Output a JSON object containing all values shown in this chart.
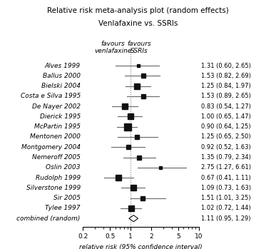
{
  "title_line1": "Relative risk meta-analysis plot (random effects)",
  "title_line2": "Venlafaxine vs. SSRIs",
  "xlabel": "relative risk (95% confidence interval)",
  "studies": [
    {
      "label": "Alves 1999",
      "rr": 1.31,
      "ci_lo": 0.6,
      "ci_hi": 2.65
    },
    {
      "label": "Ballus 2000",
      "rr": 1.53,
      "ci_lo": 0.82,
      "ci_hi": 2.69
    },
    {
      "label": "Bielski 2004",
      "rr": 1.25,
      "ci_lo": 0.84,
      "ci_hi": 1.97
    },
    {
      "label": "Costa e Silva 1995",
      "rr": 1.53,
      "ci_lo": 0.89,
      "ci_hi": 2.65
    },
    {
      "label": "De Nayer 2002",
      "rr": 0.83,
      "ci_lo": 0.54,
      "ci_hi": 1.27
    },
    {
      "label": "Dierick 1995",
      "rr": 1.0,
      "ci_lo": 0.65,
      "ci_hi": 1.47
    },
    {
      "label": "McPartin 1995",
      "rr": 0.9,
      "ci_lo": 0.64,
      "ci_hi": 1.25
    },
    {
      "label": "Mentonen 2000",
      "rr": 1.25,
      "ci_lo": 0.65,
      "ci_hi": 2.5
    },
    {
      "label": "Montgomery 2004",
      "rr": 0.92,
      "ci_lo": 0.52,
      "ci_hi": 1.63
    },
    {
      "label": "Nemeroff 2005",
      "rr": 1.35,
      "ci_lo": 0.79,
      "ci_hi": 2.34
    },
    {
      "label": "Oslin 2003",
      "rr": 2.75,
      "ci_lo": 1.27,
      "ci_hi": 6.61
    },
    {
      "label": "Rudolph 1999",
      "rr": 0.67,
      "ci_lo": 0.41,
      "ci_hi": 1.11
    },
    {
      "label": "Silverstone 1999",
      "rr": 1.09,
      "ci_lo": 0.73,
      "ci_hi": 1.63
    },
    {
      "label": "Sir 2005",
      "rr": 1.51,
      "ci_lo": 1.01,
      "ci_hi": 3.25
    },
    {
      "label": "Tylee 1997",
      "rr": 1.02,
      "ci_lo": 0.72,
      "ci_hi": 1.44
    },
    {
      "label": "combined (random)",
      "rr": 1.11,
      "ci_lo": 0.95,
      "ci_hi": 1.29,
      "is_combined": true
    }
  ],
  "ci_text": [
    "1.31 (0.60, 2.65)",
    "1.53 (0.82, 2.69)",
    "1.25 (0.84, 1.97)",
    "1.53 (0.89, 2.65)",
    "0.83 (0.54, 1.27)",
    "1.00 (0.65, 1.47)",
    "0.90 (0.64, 1.25)",
    "1.25 (0.65, 2.50)",
    "0.92 (0.52, 1.63)",
    "1.35 (0.79, 2.34)",
    "2.75 (1.27, 6.61)",
    "0.67 (0.41, 1.11)",
    "1.09 (0.73, 1.63)",
    "1.51 (1.01, 3.25)",
    "1.02 (0.72, 1.44)",
    "1.11 (0.95, 1.29)"
  ],
  "xmin": 0.2,
  "xmax": 10,
  "xticks": [
    0.2,
    0.5,
    1.0,
    2.0,
    5.0,
    10.0
  ],
  "xticklabels": [
    "0.2",
    "0.5",
    "1",
    "2",
    "5",
    "10"
  ],
  "favor_left": "favours\nvenlafaxine",
  "favor_right": "favours\nSSRIs",
  "line_color": "#666666",
  "marker_color": "#111111",
  "diamond_color": "#ffffff",
  "diamond_edge_color": "#111111",
  "bg_color": "#ffffff",
  "title_fontsize": 7.5,
  "label_fontsize": 6.5,
  "ci_fontsize": 6.0,
  "tick_fontsize": 6.5,
  "favor_fontsize": 6.5
}
